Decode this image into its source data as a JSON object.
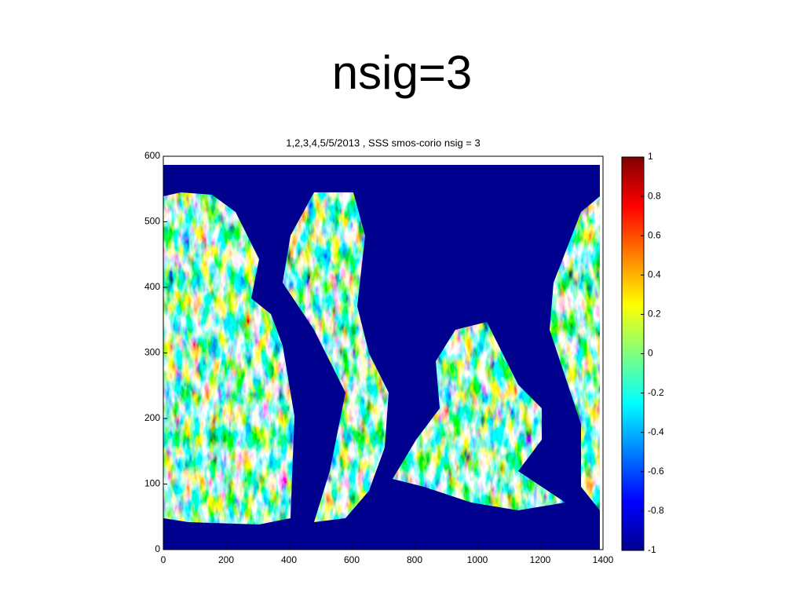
{
  "slide_title": "nsig=3",
  "chart_data": {
    "type": "heatmap",
    "title": "1,2,3,4,5/5/2013 , SSS smos-corio nsig = 3",
    "xlim": [
      0,
      1400
    ],
    "xticks": [
      0,
      200,
      400,
      600,
      800,
      1000,
      1200,
      1400
    ],
    "ylim": [
      0,
      600
    ],
    "yticks": [
      0,
      100,
      200,
      300,
      400,
      500,
      600
    ],
    "colorbar": {
      "lim": [
        -1,
        1
      ],
      "ticks": [
        -1,
        -0.8,
        -0.6,
        -0.4,
        -0.2,
        0,
        0.2,
        0.4,
        0.6,
        0.8,
        1
      ]
    }
  }
}
